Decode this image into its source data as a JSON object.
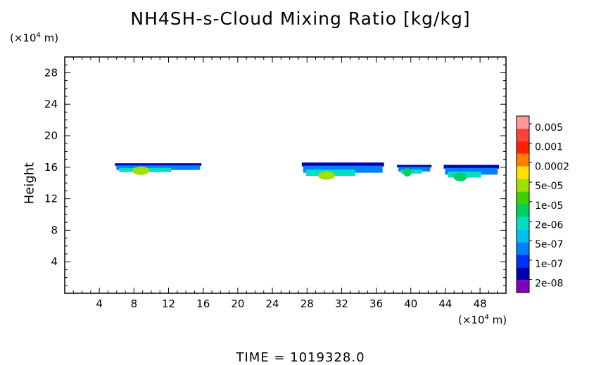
{
  "chart_data": {
    "type": "heatmap",
    "title": "NH4SH-s-Cloud Mixing Ratio [kg/kg]",
    "ylabel": "Height",
    "y_unit": "(×10⁴ m)",
    "x_unit": "(×10⁴ m)",
    "footer": "TIME =  1019328.0",
    "xlim": [
      0,
      51
    ],
    "ylim": [
      0,
      30
    ],
    "x_ticks": [
      4,
      8,
      12,
      16,
      20,
      24,
      28,
      32,
      36,
      40,
      44,
      48
    ],
    "y_ticks": [
      4,
      8,
      12,
      16,
      20,
      24,
      28
    ],
    "legend": {
      "labels": [
        "0.005",
        "0.001",
        "0.0002",
        "5e-05",
        "1e-05",
        "2e-06",
        "5e-07",
        "1e-07",
        "2e-08"
      ],
      "colors": [
        "#ff9999",
        "#ff4040",
        "#ff2000",
        "#ff8000",
        "#ffe000",
        "#a0e000",
        "#40d000",
        "#00d060",
        "#00e0c0",
        "#00c0f0",
        "#0080ff",
        "#0030ff",
        "#0000b0",
        "#8000c0"
      ]
    },
    "cloud_patches": [
      {
        "x": [
          5.8,
          15.8
        ],
        "y": [
          15.2,
          16.5
        ],
        "peak_level": "1e-05"
      },
      {
        "x": [
          27.4,
          36.9
        ],
        "y": [
          14.6,
          16.6
        ],
        "peak_level": "1e-05"
      },
      {
        "x": [
          38.4,
          42.4
        ],
        "y": [
          15.0,
          16.3
        ],
        "peak_level": "2e-06"
      },
      {
        "x": [
          43.8,
          50.2
        ],
        "y": [
          14.4,
          16.3
        ],
        "peak_level": "2e-06"
      }
    ]
  }
}
